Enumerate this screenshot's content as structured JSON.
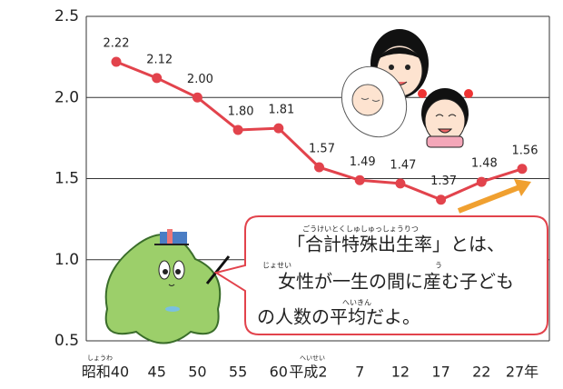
{
  "chart_data": {
    "type": "line",
    "categories": [
      "昭和40",
      "45",
      "50",
      "55",
      "60",
      "平成2",
      "7",
      "12",
      "17",
      "22",
      "27年"
    ],
    "category_ruby": [
      "しょうわ",
      "へいせい"
    ],
    "series": [
      {
        "color": "#e2434c",
        "values": [
          2.22,
          2.12,
          2.0,
          1.8,
          1.81,
          1.57,
          1.49,
          1.47,
          1.37,
          1.48,
          1.56
        ],
        "value_labels": [
          "2.22",
          "2.12",
          "2.00",
          "1.80",
          "1.81",
          "1.57",
          "1.49",
          "1.47",
          "1.37",
          "1.48",
          "1.56"
        ]
      }
    ],
    "ylim": [
      0.5,
      2.5
    ],
    "yticks": [
      0.5,
      {
        "value": 1.0,
        "label": "1.0"
      },
      1.5,
      {
        "value": 2.0,
        "label": "2.0"
      },
      2.5
    ],
    "grid": true,
    "annotation": {
      "lines": [
        "「合計特殊出生率」とは、",
        "女性が一生の間に産む子ども",
        "の人数の平均だよ。"
      ],
      "ruby": [
        "ごうけいとくしゅしゅっしょうりつ",
        "じょせい",
        "う",
        "へいきん"
      ]
    }
  }
}
